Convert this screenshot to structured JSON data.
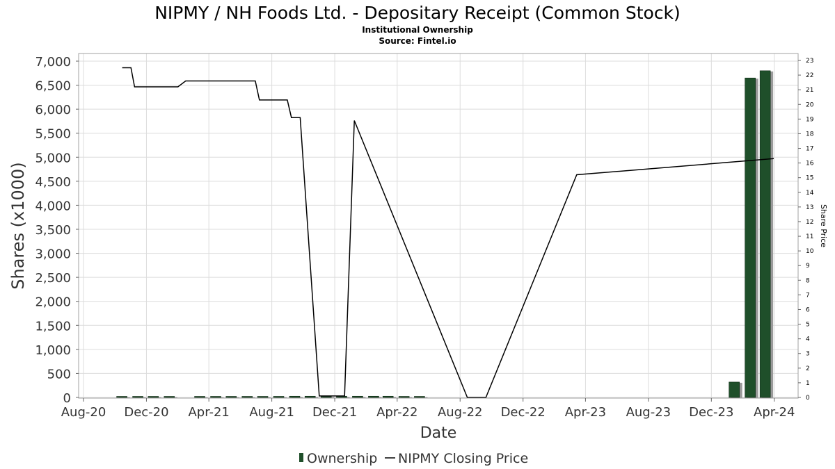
{
  "title": "NIPMY / NH Foods Ltd. - Depositary Receipt (Common Stock)",
  "subtitle": "Institutional Ownership",
  "source": "Source: Fintel.io",
  "chart_data": {
    "type": "bar",
    "xlabel": "Date",
    "ylabel": "Shares (x1000)",
    "y2label": "Share Price",
    "ylim": [
      0,
      7000
    ],
    "y2lim": [
      0,
      23
    ],
    "xlim": [
      "2020-08-01",
      "2024-05-01"
    ],
    "x_ticks": [
      "Aug-20",
      "Dec-20",
      "Apr-21",
      "Aug-21",
      "Dec-21",
      "Apr-22",
      "Aug-22",
      "Dec-22",
      "Apr-23",
      "Aug-23",
      "Dec-23",
      "Apr-24"
    ],
    "y_ticks": [
      "0",
      "500",
      "1,000",
      "1,500",
      "2,000",
      "2,500",
      "3,000",
      "3,500",
      "4,000",
      "4,500",
      "5,000",
      "5,500",
      "6,000",
      "6,500",
      "7,000"
    ],
    "y2_ticks": [
      "0",
      "1",
      "2",
      "3",
      "4",
      "5",
      "6",
      "7",
      "8",
      "9",
      "10",
      "11",
      "12",
      "13",
      "14",
      "15",
      "16",
      "17",
      "18",
      "19",
      "20",
      "21",
      "22",
      "23"
    ],
    "grid": true,
    "legend_position": "bottom",
    "series": [
      {
        "name": "Ownership",
        "kind": "bar",
        "color": "#1f4f2a",
        "points": [
          {
            "x": "2020-10-15",
            "y": 5
          },
          {
            "x": "2020-11-15",
            "y": 5
          },
          {
            "x": "2020-12-15",
            "y": 5
          },
          {
            "x": "2021-01-15",
            "y": 5
          },
          {
            "x": "2021-03-15",
            "y": 20
          },
          {
            "x": "2021-04-15",
            "y": 20
          },
          {
            "x": "2021-05-15",
            "y": 20
          },
          {
            "x": "2021-06-15",
            "y": 20
          },
          {
            "x": "2021-07-15",
            "y": 20
          },
          {
            "x": "2021-08-15",
            "y": 22
          },
          {
            "x": "2021-09-15",
            "y": 25
          },
          {
            "x": "2021-10-15",
            "y": 25
          },
          {
            "x": "2021-11-15",
            "y": 25
          },
          {
            "x": "2021-12-15",
            "y": 25
          },
          {
            "x": "2022-01-15",
            "y": 25
          },
          {
            "x": "2022-02-15",
            "y": 25
          },
          {
            "x": "2022-03-15",
            "y": 25
          },
          {
            "x": "2022-04-15",
            "y": 15
          },
          {
            "x": "2022-05-15",
            "y": 15
          },
          {
            "x": "2024-01-15",
            "y": 320
          },
          {
            "x": "2024-02-15",
            "y": 6650
          },
          {
            "x": "2024-03-15",
            "y": 6800
          }
        ]
      },
      {
        "name": "NIPMY Closing Price",
        "kind": "line",
        "color": "#000000",
        "points": [
          {
            "x": "2020-10-15",
            "y": 22.5
          },
          {
            "x": "2020-11-01",
            "y": 22.5
          },
          {
            "x": "2020-11-08",
            "y": 21.2
          },
          {
            "x": "2021-01-31",
            "y": 21.2
          },
          {
            "x": "2021-02-15",
            "y": 21.6
          },
          {
            "x": "2021-06-30",
            "y": 21.6
          },
          {
            "x": "2021-07-08",
            "y": 20.3
          },
          {
            "x": "2021-08-31",
            "y": 20.3
          },
          {
            "x": "2021-09-08",
            "y": 19.1
          },
          {
            "x": "2021-09-25",
            "y": 19.1
          },
          {
            "x": "2021-11-01",
            "y": 0.1
          },
          {
            "x": "2021-12-20",
            "y": 0.1
          },
          {
            "x": "2022-01-08",
            "y": 18.9
          },
          {
            "x": "2022-08-15",
            "y": 0
          },
          {
            "x": "2022-09-20",
            "y": 0
          },
          {
            "x": "2023-03-15",
            "y": 15.2
          },
          {
            "x": "2024-03-31",
            "y": 16.3
          }
        ]
      }
    ]
  }
}
